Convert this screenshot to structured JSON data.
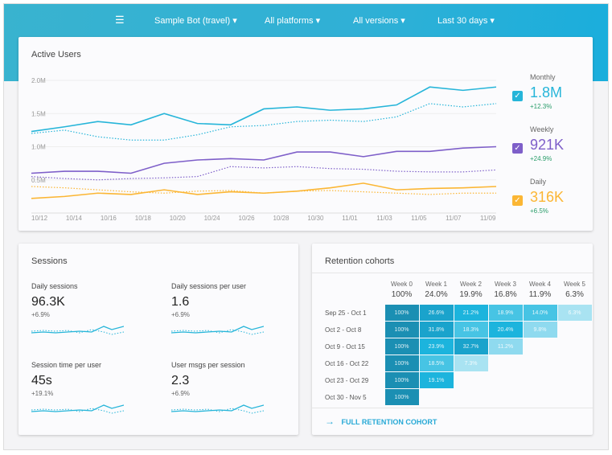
{
  "filters": {
    "bot": "Sample Bot (travel) ▾",
    "platforms": "All platforms ▾",
    "versions": "All versions ▾",
    "range": "Last 30 days ▾"
  },
  "active_users": {
    "title": "Active Users",
    "y_ticks": [
      "2.0M",
      "1.5M",
      "1.0M",
      "0.5M"
    ],
    "x_ticks": [
      "10/12",
      "10/14",
      "10/16",
      "10/18",
      "10/20",
      "10/24",
      "10/26",
      "10/28",
      "10/30",
      "11/01",
      "11/03",
      "11/05",
      "11/07",
      "11/09"
    ],
    "legend": [
      {
        "label": "Monthly",
        "value": "1.8M",
        "change": "+12.3%",
        "color": "#26b5d9"
      },
      {
        "label": "Weekly",
        "value": "921K",
        "change": "+24.9%",
        "color": "#7e5fc9"
      },
      {
        "label": "Daily",
        "value": "316K",
        "change": "+6.5%",
        "color": "#fbb634"
      }
    ]
  },
  "chart_data": {
    "type": "line",
    "ylim": [
      0,
      2.0
    ],
    "y_unit": "M",
    "x": [
      "10/12",
      "10/14",
      "10/16",
      "10/18",
      "10/20",
      "10/22",
      "10/24",
      "10/26",
      "10/28",
      "10/30",
      "11/01",
      "11/03",
      "11/05",
      "11/07",
      "11/09"
    ],
    "series": [
      {
        "name": "Monthly",
        "style": "solid",
        "color": "#26b5d9",
        "values": [
          1.23,
          1.3,
          1.38,
          1.33,
          1.5,
          1.35,
          1.33,
          1.57,
          1.6,
          1.55,
          1.57,
          1.63,
          1.9,
          1.85,
          1.9
        ]
      },
      {
        "style": "dotted",
        "color": "#26b5d9",
        "values": [
          1.2,
          1.25,
          1.15,
          1.1,
          1.1,
          1.18,
          1.3,
          1.32,
          1.38,
          1.4,
          1.38,
          1.45,
          1.65,
          1.6,
          1.65
        ]
      },
      {
        "name": "Weekly",
        "style": "solid",
        "color": "#7e5fc9",
        "values": [
          0.6,
          0.63,
          0.63,
          0.6,
          0.75,
          0.8,
          0.82,
          0.8,
          0.92,
          0.92,
          0.85,
          0.93,
          0.93,
          0.98,
          1.0
        ]
      },
      {
        "style": "dotted",
        "color": "#7e5fc9",
        "values": [
          0.55,
          0.52,
          0.5,
          0.52,
          0.53,
          0.55,
          0.7,
          0.68,
          0.7,
          0.67,
          0.66,
          0.63,
          0.62,
          0.62,
          0.65
        ]
      },
      {
        "name": "Daily",
        "style": "solid",
        "color": "#fbb634",
        "values": [
          0.22,
          0.25,
          0.3,
          0.28,
          0.35,
          0.28,
          0.32,
          0.3,
          0.33,
          0.38,
          0.45,
          0.35,
          0.37,
          0.38,
          0.4
        ]
      },
      {
        "style": "dotted",
        "color": "#fbb634",
        "values": [
          0.4,
          0.38,
          0.35,
          0.32,
          0.3,
          0.33,
          0.34,
          0.3,
          0.33,
          0.34,
          0.32,
          0.3,
          0.28,
          0.3,
          0.3
        ]
      }
    ]
  },
  "sessions": {
    "title": "Sessions",
    "metrics": [
      {
        "label": "Daily sessions",
        "value": "96.3K",
        "change": "+6.9%"
      },
      {
        "label": "Daily sessions per user",
        "value": "1.6",
        "change": "+6.9%"
      },
      {
        "label": "Session time per user",
        "value": "45s",
        "change": "+19.1%"
      },
      {
        "label": "User msgs per session",
        "value": "2.3",
        "change": "+6.9%"
      }
    ]
  },
  "retention": {
    "title": "Retention cohorts",
    "link": "FULL RETENTION COHORT",
    "weeks": [
      "Week 0",
      "Week 1",
      "Week 2",
      "Week 3",
      "Week 4",
      "Week 5"
    ],
    "averages": [
      "100%",
      "24.0%",
      "19.9%",
      "16.8%",
      "11.9%",
      "6.3%"
    ],
    "rows": [
      {
        "label": "Sep 25 - Oct 1",
        "cells": [
          "100%",
          "26.6%",
          "21.2%",
          "18.9%",
          "14.0%",
          "6.3%"
        ]
      },
      {
        "label": "Oct 2 - Oct 8",
        "cells": [
          "100%",
          "31.8%",
          "18.3%",
          "20.4%",
          "9.8%"
        ]
      },
      {
        "label": "Oct 9 - Oct 15",
        "cells": [
          "100%",
          "23.9%",
          "32.7%",
          "11.2%"
        ]
      },
      {
        "label": "Oct 16 - Oct 22",
        "cells": [
          "100%",
          "18.5%",
          "7.3%"
        ]
      },
      {
        "label": "Oct 23 - Oct 29",
        "cells": [
          "100%",
          "19.1%"
        ]
      },
      {
        "label": "Oct 30 - Nov 5",
        "cells": [
          "100%"
        ]
      }
    ]
  }
}
